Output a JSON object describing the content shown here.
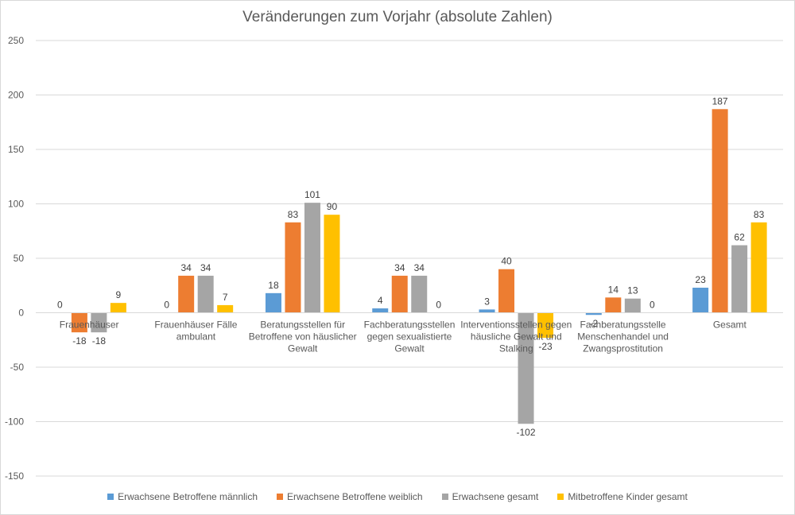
{
  "chart_data": {
    "type": "bar",
    "title": "Veränderungen zum Vorjahr (absolute Zahlen)",
    "categories": [
      [
        "Frauenhäuser"
      ],
      [
        "Frauenhäuser Fälle",
        "ambulant"
      ],
      [
        "Beratungsstellen für",
        "Betroffene von häuslicher",
        "Gewalt"
      ],
      [
        "Fachberatungsstellen",
        "gegen sexualistierte",
        "Gewalt"
      ],
      [
        "Interventionsstellen gegen",
        "häusliche Gewalt und",
        "Stalking"
      ],
      [
        "Fachberatungsstelle",
        "Menschenhandel und",
        "Zwangsprostitution"
      ],
      [
        "Gesamt"
      ]
    ],
    "series": [
      {
        "name": "Erwachsene Betroffene männlich",
        "color": "#5b9bd5",
        "values": [
          0,
          0,
          18,
          4,
          3,
          -2,
          23
        ]
      },
      {
        "name": "Erwachsene Betroffene weiblich",
        "color": "#ed7d31",
        "values": [
          -18,
          34,
          83,
          34,
          40,
          14,
          187
        ]
      },
      {
        "name": "Erwachsene gesamt",
        "color": "#a5a5a5",
        "values": [
          -18,
          34,
          101,
          34,
          -102,
          13,
          62
        ]
      },
      {
        "name": "Mitbetroffene Kinder gesamt",
        "color": "#ffc000",
        "values": [
          9,
          7,
          90,
          0,
          -23,
          0,
          83
        ]
      }
    ],
    "yticks": [
      250,
      200,
      150,
      100,
      50,
      0,
      -50,
      -100,
      -150
    ],
    "ylim": [
      -150,
      250
    ],
    "grid": true,
    "legend_position": "bottom"
  }
}
